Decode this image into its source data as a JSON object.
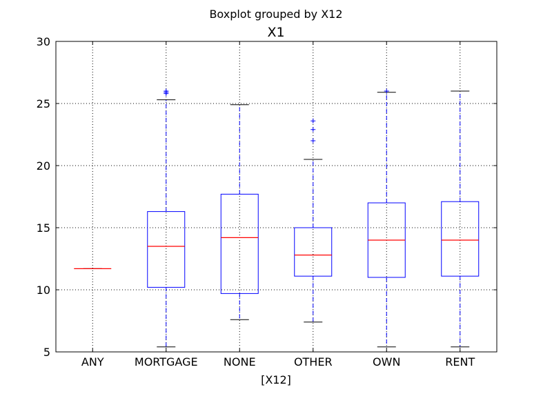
{
  "chart_data": {
    "type": "boxplot",
    "suptitle": "Boxplot grouped by X12",
    "title": "X1",
    "xlabel": "[X12]",
    "ylabel": "",
    "ylim": [
      5,
      30
    ],
    "yticks": [
      5,
      10,
      15,
      20,
      25,
      30
    ],
    "grid": true,
    "grid_style": "dotted",
    "categories": [
      "ANY",
      "MORTGAGE",
      "NONE",
      "OTHER",
      "OWN",
      "RENT"
    ],
    "boxes": [
      {
        "category": "ANY",
        "whislo": 11.7,
        "q1": 11.7,
        "med": 11.7,
        "q3": 11.7,
        "whishi": 11.7,
        "fliers": []
      },
      {
        "category": "MORTGAGE",
        "whislo": 5.4,
        "q1": 10.2,
        "med": 13.5,
        "q3": 16.3,
        "whishi": 25.3,
        "fliers": [
          25.8,
          25.9,
          26.0
        ]
      },
      {
        "category": "NONE",
        "whislo": 7.6,
        "q1": 9.7,
        "med": 14.2,
        "q3": 17.7,
        "whishi": 24.9,
        "fliers": []
      },
      {
        "category": "OTHER",
        "whislo": 7.4,
        "q1": 11.1,
        "med": 12.8,
        "q3": 15.0,
        "whishi": 20.5,
        "fliers": [
          22.0,
          22.9,
          23.6
        ]
      },
      {
        "category": "OWN",
        "whislo": 5.4,
        "q1": 11.0,
        "med": 14.0,
        "q3": 17.0,
        "whishi": 25.9,
        "fliers": [
          26.0
        ]
      },
      {
        "category": "RENT",
        "whislo": 5.4,
        "q1": 11.1,
        "med": 14.0,
        "q3": 17.1,
        "whishi": 26.0,
        "fliers": []
      }
    ],
    "colors": {
      "box": "#0000ff",
      "median": "#ff0000",
      "whisker": "#0000ff",
      "cap": "#000000",
      "flier": "#0000ff",
      "grid": "#000000"
    }
  }
}
